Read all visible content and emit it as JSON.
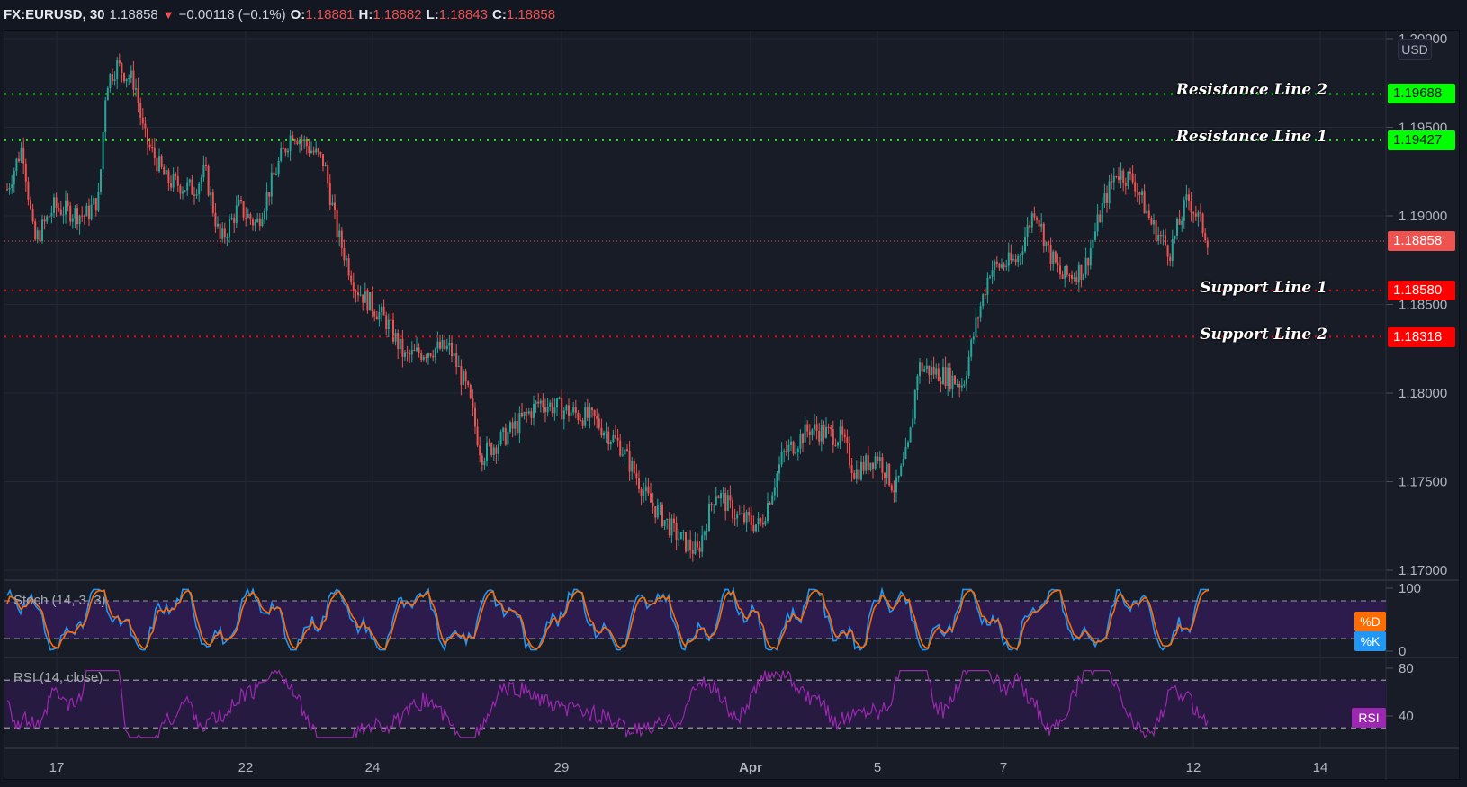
{
  "legend": {
    "symbol": "FX:EURUSD, 30",
    "last": "1.18858",
    "direction_icon": "triangle-down-icon",
    "change": "−0.00118 (−0.1%)",
    "open_label": "O:",
    "open": "1.18881",
    "high_label": "H:",
    "high": "1.18882",
    "low_label": "L:",
    "low": "1.18843",
    "close_label": "C:",
    "close": "1.18858"
  },
  "price_axis": {
    "currency": "USD",
    "ticks": [
      "1.20000",
      "1.19500",
      "1.19000",
      "1.18500",
      "1.18000",
      "1.17500",
      "1.17000"
    ]
  },
  "horizontal_lines": [
    {
      "label": "Resistance Line 2",
      "value": "1.19688",
      "color": "#00ff00",
      "text_color": "#131722"
    },
    {
      "label": "Resistance Line 1",
      "value": "1.19427",
      "color": "#00ff00",
      "text_color": "#131722"
    },
    {
      "label": "Support Line 1",
      "value": "1.18580",
      "color": "#ff0000",
      "text_color": "#ffffff"
    },
    {
      "label": "Support Line 2",
      "value": "1.18318",
      "color": "#ff0000",
      "text_color": "#ffffff"
    }
  ],
  "current_price": {
    "value": "1.18858",
    "color": "#ef5350"
  },
  "stoch": {
    "title": "Stoch (14, 3, 3)",
    "axis_ticks": [
      "100",
      "0"
    ],
    "d_label": "%D",
    "d_color": "#ff6d00",
    "k_label": "%K",
    "k_color": "#2196f3"
  },
  "rsi": {
    "title": "RSI (14, close)",
    "axis_ticks": [
      "80",
      "40"
    ],
    "label": "RSI",
    "color": "#9c27b0"
  },
  "time_axis": {
    "ticks": [
      "17",
      "22",
      "24",
      "29",
      "Apr",
      "5",
      "7",
      "12",
      "14"
    ]
  },
  "colors": {
    "background": "#181c27",
    "up_candle": "#26a69a",
    "down_candle": "#ef5350",
    "band_fill": "#2a1a4a"
  }
}
